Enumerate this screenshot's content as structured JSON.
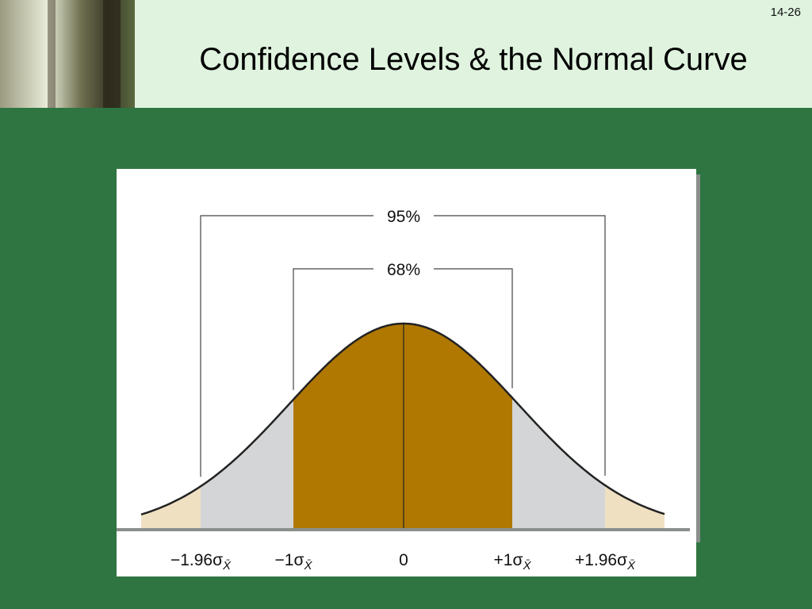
{
  "slide_number": "14-26",
  "title": "Confidence Levels & the Normal Curve",
  "diagram": {
    "brackets": [
      "95%",
      "68%"
    ],
    "axis_labels": [
      {
        "text": "−1.96σ",
        "subscript": "X̄"
      },
      {
        "text": "−1σ",
        "subscript": "X̄"
      },
      {
        "text": "0"
      },
      {
        "text": "+1σ",
        "subscript": "X̄"
      },
      {
        "text": "+1.96σ",
        "subscript": "X̄"
      }
    ]
  }
}
